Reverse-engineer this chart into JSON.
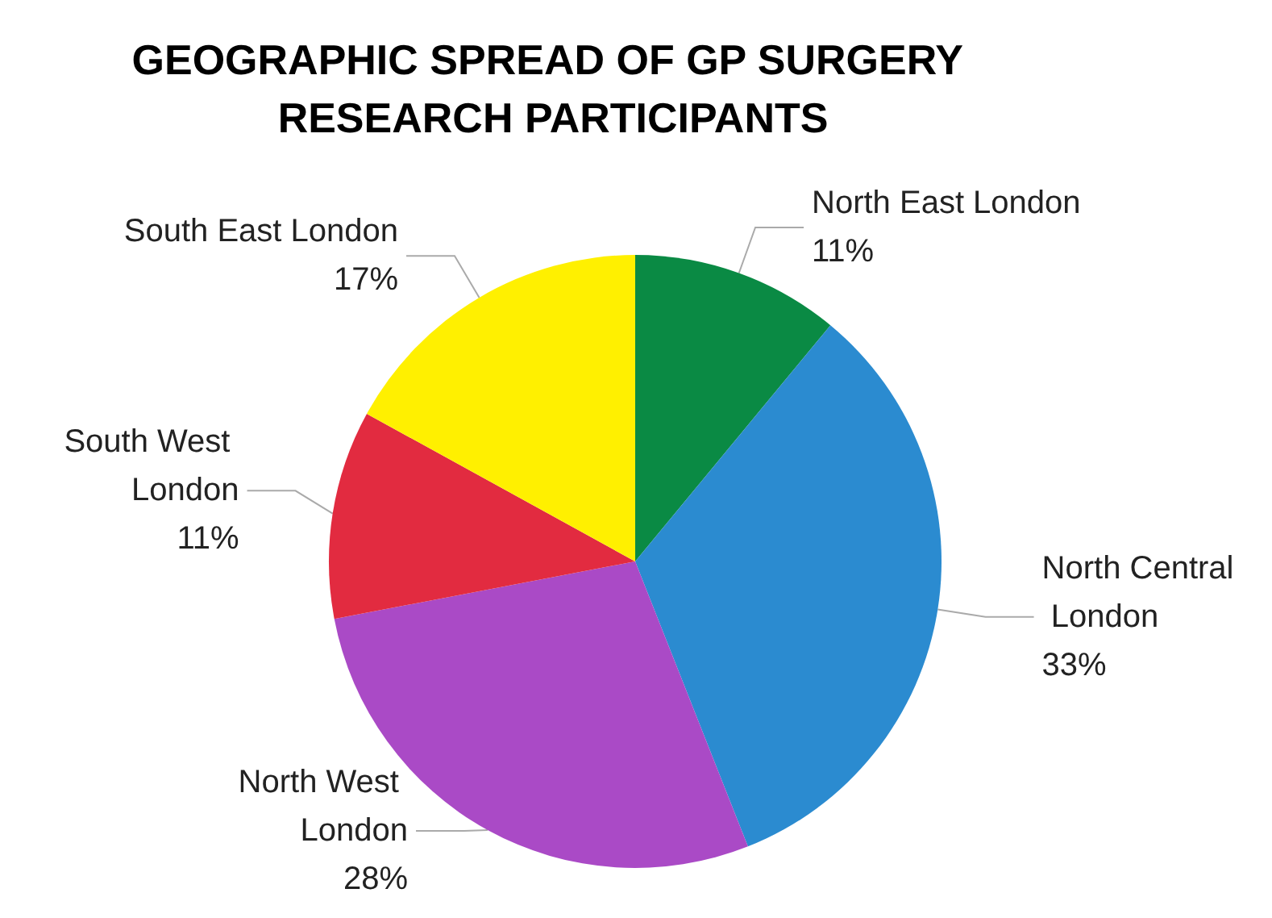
{
  "chart_data": {
    "type": "pie",
    "title": "GEOGRAPHIC SPREAD OF GP SURGERY RESEARCH PARTICIPANTS",
    "categories": [
      "North East London",
      "North Central London",
      "North West London",
      "South West London",
      "South East London"
    ],
    "values": [
      11,
      33,
      28,
      11,
      17
    ],
    "value_labels": [
      "11%",
      "33%",
      "28%",
      "11%",
      "17%"
    ],
    "colors": [
      "#0a8a44",
      "#2b8bd0",
      "#aa4ac6",
      "#e22b40",
      "#fff000"
    ],
    "legend": false
  }
}
